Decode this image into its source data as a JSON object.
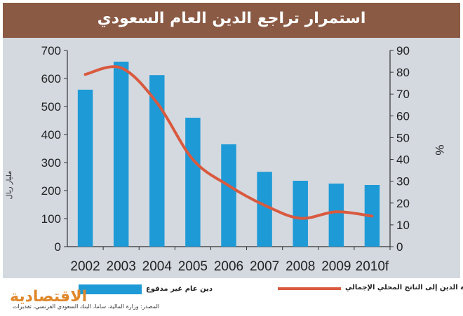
{
  "header": {
    "title": "استمرار تراجع الدين العام السعودي"
  },
  "colors": {
    "bar": "#1e9ad6",
    "line": "#d95a3f",
    "title_bg": "#8a5a44",
    "panel_bg": "#d4d9e0",
    "brand": "#e0872a"
  },
  "chart_data": {
    "type": "bar",
    "title": "استمرار تراجع الدين العام السعودي",
    "categories": [
      "2002",
      "2003",
      "2004",
      "2005",
      "2006",
      "2007",
      "2008",
      "2009",
      "2010f"
    ],
    "ylabel": "مليار ريال",
    "ylabel_right": "%",
    "ylim": [
      0,
      700
    ],
    "yticks": [
      0,
      100,
      200,
      300,
      400,
      500,
      600,
      700
    ],
    "ylim_right": [
      0,
      90
    ],
    "yticks_right": [
      0,
      10,
      20,
      30,
      40,
      50,
      60,
      70,
      80,
      90
    ],
    "grid": false,
    "legend_position": "bottom",
    "series": [
      {
        "name": "دين عام غير مدفوع",
        "type": "bar",
        "axis": "left",
        "values": [
          560,
          660,
          612,
          460,
          365,
          267,
          235,
          225,
          220
        ]
      },
      {
        "name": "نسبة الدين إلى الناتج المحلي الإجمالي",
        "type": "line",
        "axis": "right",
        "values": [
          79,
          82,
          66,
          40,
          28,
          19,
          13,
          16,
          14
        ]
      }
    ]
  },
  "legend": {
    "bar_label": "دين عام غير مدفوع",
    "line_label": "نسبة الدين إلى الناتج المحلي الإجمالي"
  },
  "footer": {
    "brand": "الاقتصادية",
    "source": "المصدر: وزارة المالية، ساما، البنك السعودي الفرنسي، تقديرات"
  }
}
